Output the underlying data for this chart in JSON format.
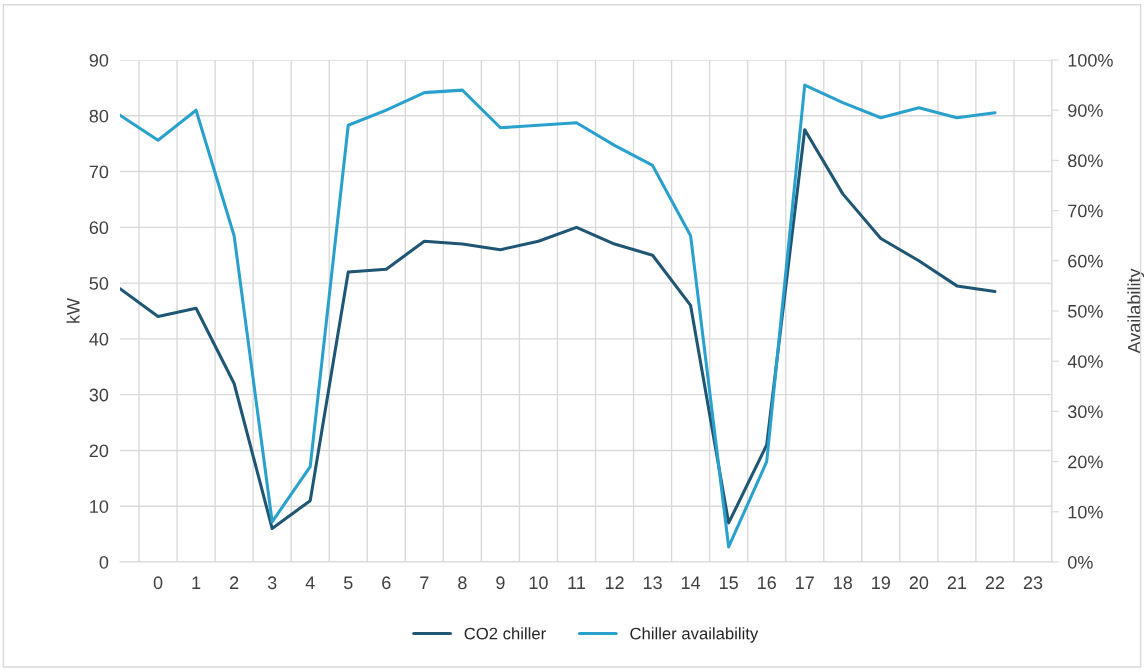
{
  "chart_data": {
    "type": "line",
    "categories": [
      null,
      "0",
      "1",
      "2",
      "3",
      "4",
      "5",
      "6",
      "7",
      "8",
      "9",
      "10",
      "11",
      "12",
      "13",
      "14",
      "15",
      "16",
      "17",
      "18",
      "19",
      "20",
      "21",
      "22",
      "23"
    ],
    "series": [
      {
        "name": "CO2 chiller",
        "color": "#1f5673",
        "values": [
          49,
          44,
          45.5,
          32,
          6,
          11,
          52,
          52.5,
          57.5,
          57,
          56,
          57.5,
          60,
          57,
          55,
          46,
          7,
          21,
          77.5,
          66,
          58,
          54,
          49.5,
          48.5,
          null
        ]
      },
      {
        "name": "Chiller availability",
        "color": "#2aa1cd",
        "axis": "y2",
        "values": [
          89,
          84,
          90,
          65,
          8,
          19,
          87,
          90,
          93.5,
          94,
          86.5,
          87,
          87.5,
          83,
          79,
          65,
          3,
          20,
          95,
          91.5,
          88.5,
          90.5,
          88.5,
          89.5,
          null
        ]
      }
    ],
    "ylabel": "kW",
    "y2label": "Availability",
    "ylim": [
      0,
      90
    ],
    "yticks": [
      0,
      10,
      20,
      30,
      40,
      50,
      60,
      70,
      80,
      90
    ],
    "y2lim": [
      0,
      100
    ],
    "y2ticks": [
      {
        "value": 0,
        "label": "0%"
      },
      {
        "value": 10,
        "label": "10%"
      },
      {
        "value": 20,
        "label": "20%"
      },
      {
        "value": 30,
        "label": "30%"
      },
      {
        "value": 40,
        "label": "40%"
      },
      {
        "value": 50,
        "label": "50%"
      },
      {
        "value": 60,
        "label": "60%"
      },
      {
        "value": 70,
        "label": "70%"
      },
      {
        "value": 80,
        "label": "80%"
      },
      {
        "value": 90,
        "label": "90%"
      },
      {
        "value": 100,
        "label": "100%"
      }
    ],
    "grid": true,
    "legend": "bottom",
    "marker": "none",
    "line_style": "solid"
  }
}
